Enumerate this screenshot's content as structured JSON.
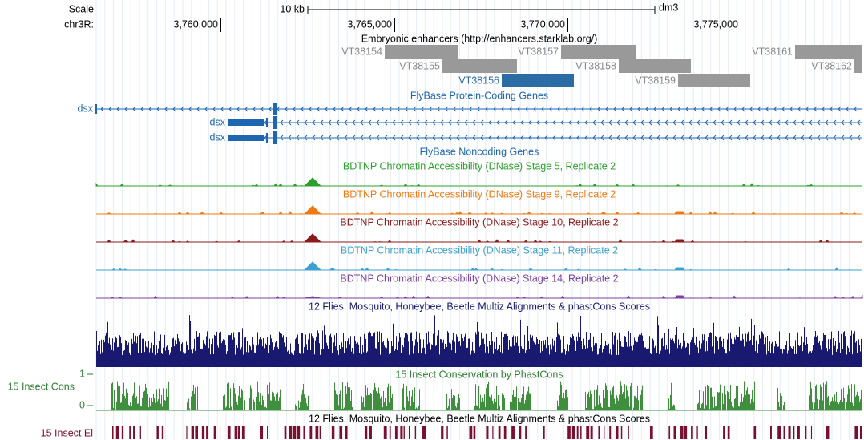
{
  "header": {
    "scale_label": "Scale",
    "scale_text": "10 kb",
    "assembly": "dm3",
    "chrom": "chr3R:",
    "positions": [
      "3,760,000",
      "3,765,000",
      "3,770,000",
      "3,775,000"
    ]
  },
  "tracks": {
    "enhancers": {
      "title": "Embryonic enhancers (http://enhancers.starklab.org/)",
      "items": [
        "VT38154",
        "VT38157",
        "VT38161",
        "VT38155",
        "VT38158",
        "VT38162",
        "VT38156",
        "VT38159"
      ]
    },
    "genes": {
      "title": "FlyBase Protein-Coding Genes",
      "labels": [
        "dsx",
        "dsx",
        "dsx"
      ]
    },
    "noncoding": {
      "title": "FlyBase Noncoding Genes"
    },
    "dnase": [
      {
        "title": "BDTNP Chromatin Accessibility (DNase) Stage 5, Replicate 2",
        "color": "#2ca02c"
      },
      {
        "title": "BDTNP Chromatin Accessibility (DNase) Stage 9, Replicate 2",
        "color": "#f07a10"
      },
      {
        "title": "BDTNP Chromatin Accessibility (DNase) Stage 10, Replicate 2",
        "color": "#8b1a1a"
      },
      {
        "title": "BDTNP Chromatin Accessibility (DNase) Stage 11, Replicate 2",
        "color": "#3ca0d0"
      },
      {
        "title": "BDTNP Chromatin Accessibility (DNase) Stage 14, Replicate 2",
        "color": "#7b3fa0"
      }
    ],
    "multiz": {
      "title": "12 Flies, Mosquito, Honeybee, Beetle Multiz Alignments & phastCons Scores"
    },
    "cons": {
      "title": "15 Insect Conservation by PhastCons",
      "label": "15 Insect Cons",
      "max": "1",
      "min": "0"
    },
    "elements": {
      "title": "12 Flies, Mosquito, Honeybee, Beetle Multiz Alignments & phastCons Scores",
      "label": "15 Insect El"
    }
  }
}
